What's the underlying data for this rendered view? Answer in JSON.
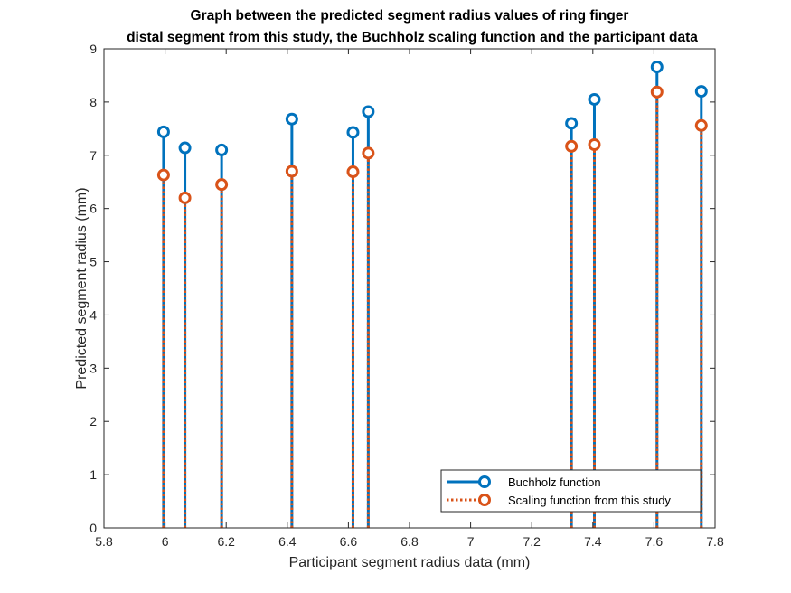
{
  "chart_data": {
    "type": "stem",
    "title_lines": [
      "Graph between the predicted segment radius values of ring finger",
      "distal segment from this study, the Buchholz scaling function and the participant data"
    ],
    "xlabel": "Participant segment radius data (mm)",
    "ylabel": "Predicted segment radius (mm)",
    "xlim": [
      5.8,
      7.8
    ],
    "ylim": [
      0,
      9
    ],
    "xticks": [
      "5.8",
      "6",
      "6.2",
      "6.4",
      "6.6",
      "6.8",
      "7",
      "7.2",
      "7.4",
      "7.6",
      "7.8"
    ],
    "yticks": [
      "0",
      "1",
      "2",
      "3",
      "4",
      "5",
      "6",
      "7",
      "8",
      "9"
    ],
    "grid": false,
    "legend_position": "bottom-right",
    "x": [
      5.995,
      6.065,
      6.185,
      6.415,
      6.615,
      6.665,
      7.33,
      7.405,
      7.61,
      7.755
    ],
    "series": [
      {
        "name": "Buchholz function",
        "color": "#0072BD",
        "line_style": "solid",
        "marker": "circle",
        "values": [
          7.44,
          7.14,
          7.1,
          7.68,
          7.43,
          7.82,
          7.6,
          8.05,
          8.66,
          8.2
        ]
      },
      {
        "name": "Scaling function from this study",
        "color": "#D95319",
        "line_style": "dotted",
        "marker": "circle",
        "values": [
          6.63,
          6.2,
          6.45,
          6.7,
          6.69,
          7.04,
          7.17,
          7.2,
          8.19,
          7.56
        ]
      }
    ]
  }
}
